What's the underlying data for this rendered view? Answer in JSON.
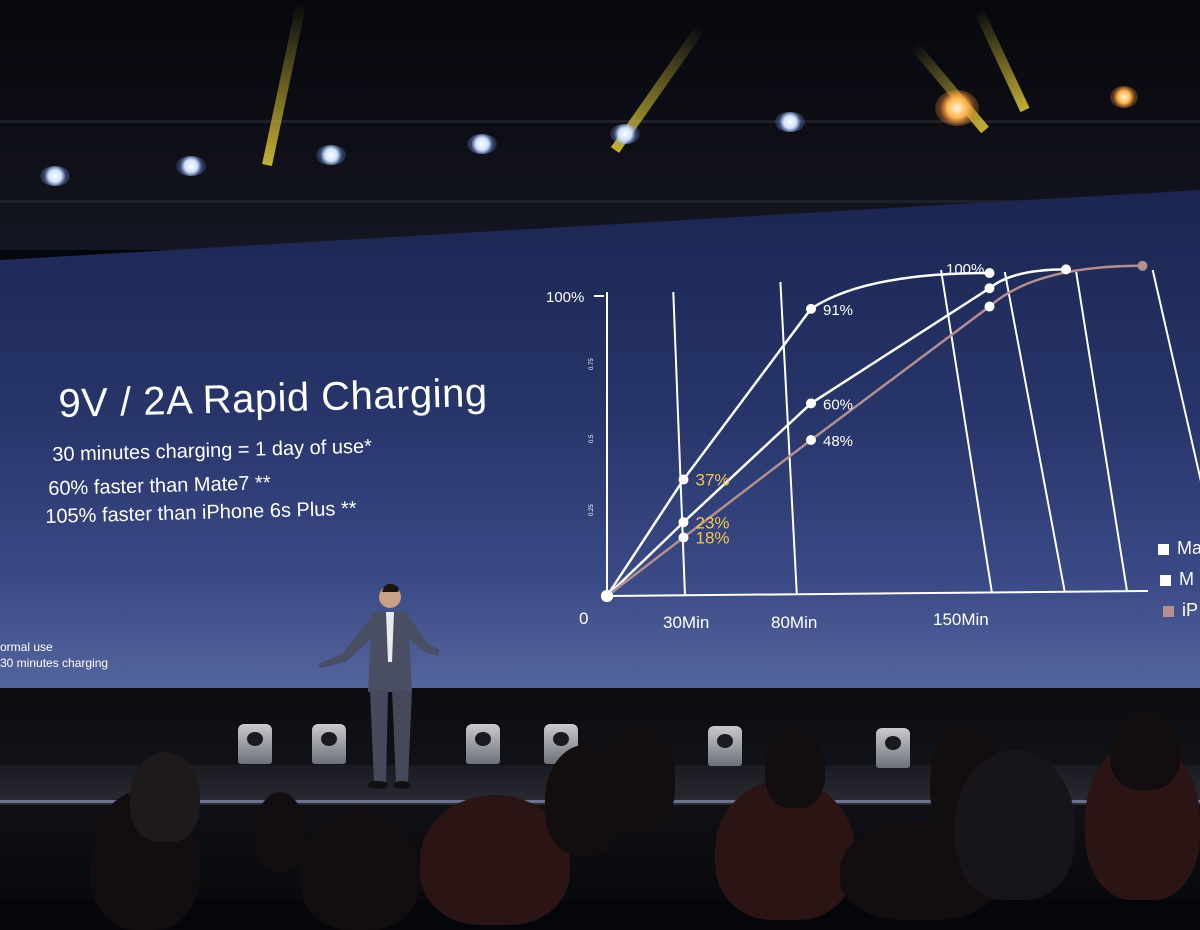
{
  "slide": {
    "title": "9V / 2A Rapid Charging",
    "bullets": [
      "30 minutes charging = 1 day of use*",
      "60% faster than Mate7 **",
      "105% faster than iPhone 6s Plus **"
    ],
    "footnotes": [
      "ormal use",
      "30 minutes charging"
    ]
  },
  "chart_data": {
    "type": "line",
    "y_axis_top_label": "100%",
    "y_axis_small_ticks": [
      "0.75",
      "0.5",
      "0.25"
    ],
    "origin_label": "0",
    "x_ticks": [
      "30Min",
      "80Min",
      "150Min"
    ],
    "series": [
      {
        "legend_label": "Ma",
        "color": "#ffffff",
        "points": [
          {
            "x": 0,
            "y": 0
          },
          {
            "x": 30,
            "y": 37,
            "label": "37%"
          },
          {
            "x": 80,
            "y": 91,
            "label": "91%"
          },
          {
            "x": 150,
            "y": 100
          }
        ]
      },
      {
        "legend_label": "M",
        "color": "#ffffff",
        "points": [
          {
            "x": 0,
            "y": 0
          },
          {
            "x": 30,
            "y": 23,
            "label": "23%"
          },
          {
            "x": 80,
            "y": 60,
            "label": "60%"
          },
          {
            "x": 150,
            "y": 95
          },
          {
            "x": 180,
            "y": 100
          }
        ]
      },
      {
        "legend_label": "iP",
        "color": "#b38f8f",
        "points": [
          {
            "x": 0,
            "y": 0
          },
          {
            "x": 30,
            "y": 18,
            "label": "18%"
          },
          {
            "x": 80,
            "y": 48,
            "label": "48%"
          },
          {
            "x": 150,
            "y": 89
          },
          {
            "x": 210,
            "y": 100
          }
        ]
      }
    ],
    "annotation": "100%",
    "highlight_color": "#f2c94c"
  }
}
